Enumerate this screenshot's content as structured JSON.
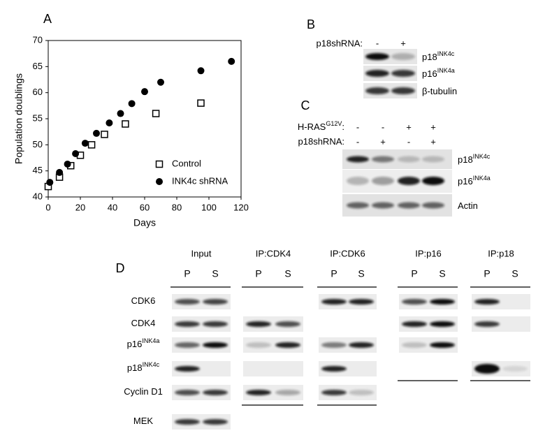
{
  "chart_data": {
    "type": "scatter",
    "panel_label": "A",
    "xlabel": "Days",
    "ylabel": "Population doublings",
    "xlim": [
      0,
      120
    ],
    "ylim": [
      40,
      70
    ],
    "xticks": [
      0,
      20,
      40,
      60,
      80,
      100,
      120
    ],
    "yticks": [
      40,
      45,
      50,
      55,
      60,
      65,
      70
    ],
    "legend": "lower right",
    "series": [
      {
        "name": "Control",
        "marker": "square",
        "color": "#000000",
        "x": [
          0,
          7,
          14,
          20,
          27,
          35,
          48,
          67,
          95
        ],
        "values": [
          42,
          43.8,
          46,
          48,
          50,
          52,
          54,
          56,
          58
        ]
      },
      {
        "name": "INK4c shRNA",
        "marker": "circle",
        "color": "#000000",
        "x": [
          1,
          7,
          12,
          17,
          23,
          30,
          38,
          45,
          52,
          60,
          70,
          95,
          114
        ],
        "values": [
          42.8,
          44.7,
          46.3,
          48.3,
          50.3,
          52.2,
          54.2,
          56,
          57.9,
          60.2,
          62,
          64.2,
          66
        ]
      }
    ]
  },
  "panel_b": {
    "label": "B",
    "header": "p18shRNA:",
    "lanes": [
      "-",
      "+"
    ],
    "rows": [
      {
        "base": "p18",
        "sup": "INK4c"
      },
      {
        "base": "p16",
        "sup": "INK4a"
      },
      {
        "base": "β-tubulin"
      }
    ]
  },
  "panel_c": {
    "label": "C",
    "conditions": [
      {
        "base": "H-RAS",
        "sup": "G12V",
        "suffix": ":",
        "lanes": [
          "-",
          "-",
          "+",
          "+"
        ]
      },
      {
        "base": "p18shRNA:",
        "lanes": [
          "-",
          "+",
          "-",
          "+"
        ]
      }
    ],
    "rows": [
      {
        "base": "p18",
        "sup": "INK4c"
      },
      {
        "base": "p16",
        "sup": "INK4a"
      },
      {
        "base": "Actin"
      }
    ]
  },
  "panel_d": {
    "label": "D",
    "groups": [
      {
        "title": "Input",
        "lanes": [
          "P",
          "S"
        ]
      },
      {
        "title": "IP:CDK4",
        "lanes": [
          "P",
          "S"
        ]
      },
      {
        "title": "IP:CDK6",
        "lanes": [
          "P",
          "S"
        ]
      },
      {
        "title": "IP:p16",
        "lanes": [
          "P",
          "S"
        ]
      },
      {
        "title": "IP:p18",
        "lanes": [
          "P",
          "S"
        ]
      }
    ],
    "rows": [
      {
        "base": "CDK6"
      },
      {
        "base": "CDK4"
      },
      {
        "base": "p16",
        "sup": "INK4a"
      },
      {
        "base": "p18",
        "sup": "INK4c"
      },
      {
        "base": "Cyclin D1"
      },
      {
        "base": "MEK"
      }
    ]
  }
}
